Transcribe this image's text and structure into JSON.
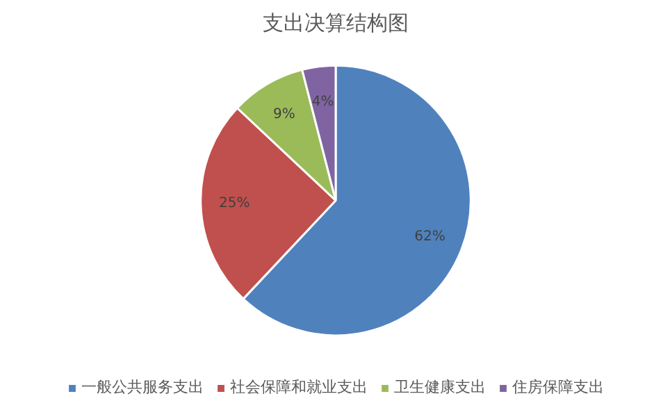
{
  "chart_data": {
    "type": "pie",
    "title": "支出决算结构图",
    "categories": [
      "一般公共服务支出",
      "社会保障和就业支出",
      "卫生健康支出",
      "住房保障支出"
    ],
    "values": [
      62,
      25,
      9,
      4
    ],
    "colors": [
      "#4f81bd",
      "#c0504d",
      "#9bbb59",
      "#8064a2"
    ],
    "value_labels": [
      "62%",
      "25%",
      "9%",
      "4%"
    ],
    "legend": "bottom"
  }
}
